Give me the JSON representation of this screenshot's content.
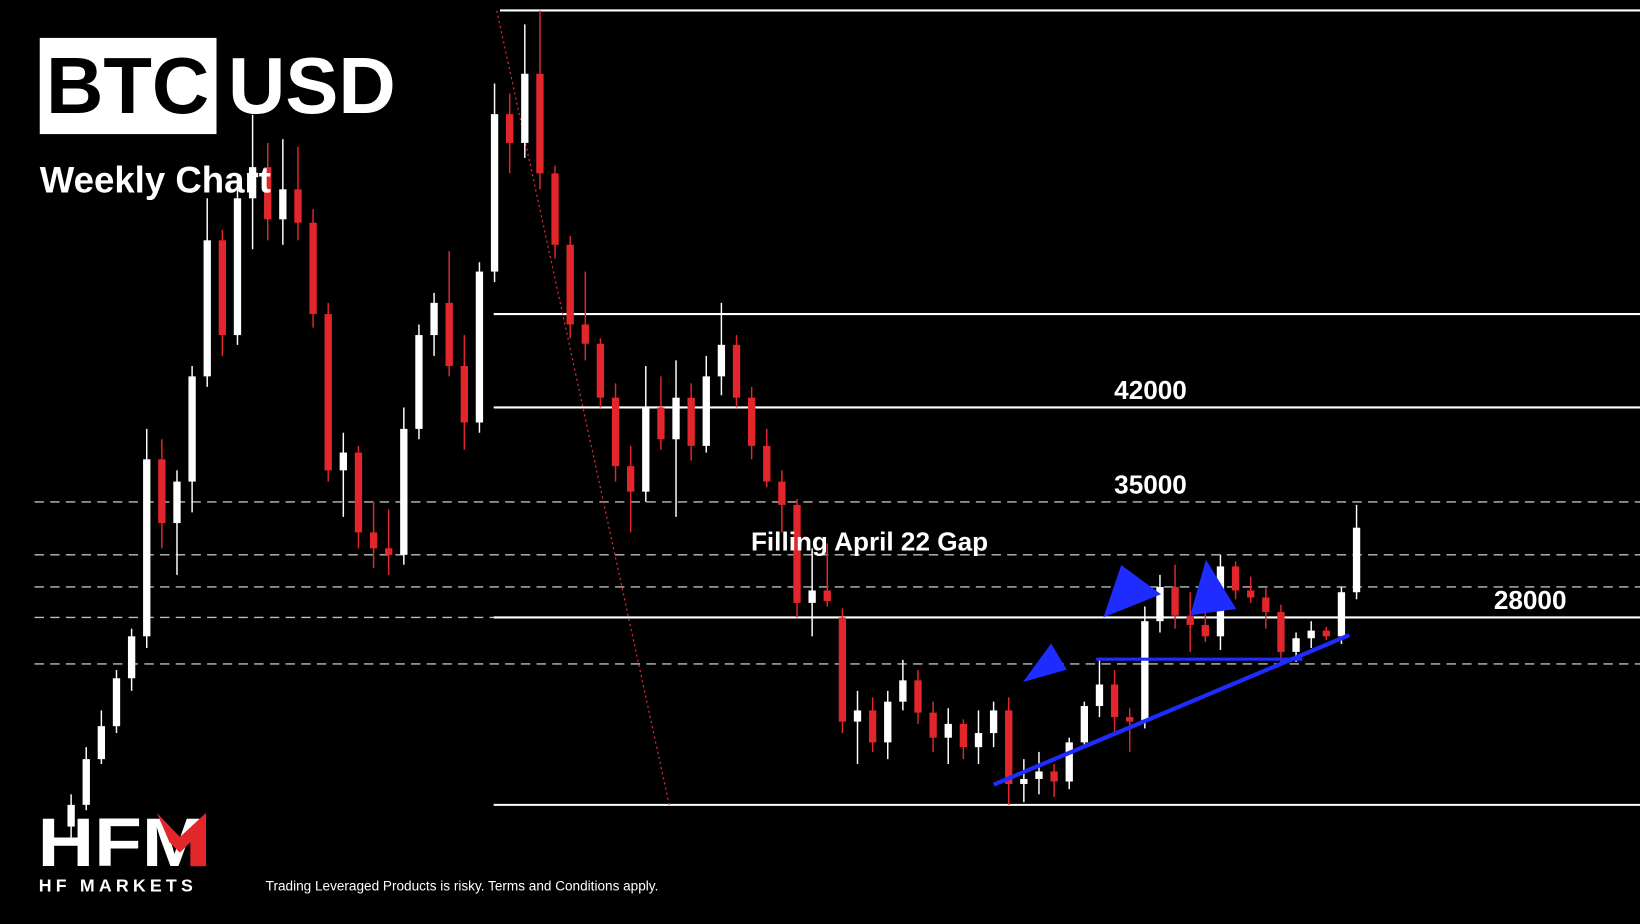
{
  "header": {
    "pair_base": "BTC",
    "pair_quote": "USD",
    "subtitle": "Weekly Chart"
  },
  "chart_data": {
    "type": "candlestick",
    "log_scale": true,
    "ylim": [
      15500,
      92200
    ],
    "up_color": "#ffffff",
    "down_color": "#e3262c",
    "annotation": "Filling April 22 Gap",
    "labeled_levels": [
      42000,
      35000,
      28000
    ],
    "solid_levels": [
      90400,
      50300,
      42000,
      28000,
      19500
    ],
    "dashed_levels": [
      35000,
      31600,
      29700,
      28000,
      25600
    ],
    "open": [
      18700,
      19500,
      21300,
      22700,
      24900,
      27000,
      38000,
      33600,
      36400,
      44600,
      58000,
      48300,
      62900,
      66800,
      60400,
      64000,
      60000,
      50300,
      37200,
      38500,
      33000,
      32000,
      31600,
      40300,
      48300,
      51400,
      45500,
      40800,
      54600,
      74000,
      70000,
      80000,
      66000,
      57500,
      49300,
      47500,
      42800,
      37500,
      35700,
      42000,
      39500,
      42800,
      39000,
      44600,
      47400,
      42800,
      39000,
      36400,
      34800,
      28800,
      29500,
      28000,
      22900,
      23400,
      22000,
      23800,
      24800,
      23300,
      22200,
      22800,
      21800,
      22400,
      23400,
      20300,
      20500,
      20800,
      20400,
      22000,
      23600,
      24600,
      23100,
      22900,
      27800,
      29700,
      28100,
      27600,
      27000,
      30900,
      29500,
      29100,
      28300,
      26200,
      26900,
      27300,
      27000,
      29400
    ],
    "high": [
      19900,
      21800,
      23400,
      25300,
      27400,
      40300,
      39500,
      37200,
      45500,
      62900,
      59200,
      65500,
      73900,
      70000,
      70500,
      69500,
      61600,
      51400,
      40000,
      39000,
      35000,
      34500,
      42000,
      49300,
      52400,
      56800,
      48300,
      55600,
      78500,
      77000,
      88000,
      90400,
      67000,
      58500,
      54600,
      48000,
      44000,
      39000,
      45500,
      44600,
      46000,
      44000,
      46400,
      51400,
      48300,
      43700,
      40300,
      37200,
      35200,
      32000,
      32300,
      28500,
      24300,
      24000,
      24300,
      25800,
      25300,
      23800,
      23500,
      23000,
      23400,
      23800,
      24000,
      21300,
      21600,
      21100,
      22200,
      23800,
      25800,
      25300,
      23500,
      28600,
      30400,
      31000,
      29400,
      28300,
      31600,
      31200,
      30300,
      29700,
      28700,
      27200,
      27800,
      27500,
      29700,
      34800
    ],
    "low": [
      18300,
      19300,
      21100,
      22400,
      24300,
      26400,
      32000,
      30400,
      34300,
      43700,
      46400,
      47400,
      57000,
      58000,
      57500,
      58000,
      49000,
      36400,
      34000,
      32000,
      30800,
      30400,
      31000,
      39500,
      46400,
      44600,
      38700,
      40000,
      53500,
      66000,
      68000,
      64000,
      56000,
      48000,
      46000,
      42000,
      36400,
      33000,
      35000,
      38700,
      34000,
      37900,
      38500,
      43000,
      42000,
      38000,
      36000,
      33000,
      28000,
      27000,
      28600,
      22400,
      21100,
      21600,
      21300,
      23400,
      22800,
      21600,
      21100,
      21300,
      21100,
      21800,
      19500,
      19600,
      19900,
      19800,
      20100,
      21800,
      23100,
      22400,
      21600,
      22600,
      27200,
      27400,
      26200,
      26700,
      26300,
      29000,
      28800,
      27400,
      25600,
      25700,
      26400,
      26800,
      26600,
      29000
    ],
    "close": [
      19500,
      21300,
      22700,
      24900,
      27000,
      38000,
      33600,
      36400,
      44600,
      58000,
      48300,
      62900,
      66800,
      60400,
      64000,
      60000,
      50300,
      37200,
      38500,
      33000,
      32000,
      31600,
      40300,
      48300,
      51400,
      45500,
      40800,
      54600,
      74000,
      70000,
      80000,
      66000,
      57500,
      49300,
      47500,
      42800,
      37500,
      35700,
      42000,
      39500,
      42800,
      39000,
      44600,
      47400,
      42800,
      39000,
      36400,
      34800,
      28800,
      29500,
      28900,
      22900,
      23400,
      22000,
      23800,
      24800,
      23300,
      22200,
      22800,
      21800,
      22400,
      23400,
      20300,
      20500,
      20800,
      20400,
      22000,
      23600,
      24600,
      23100,
      22900,
      27800,
      29700,
      28100,
      27600,
      27000,
      30900,
      29500,
      29100,
      28300,
      26200,
      26900,
      27300,
      27000,
      29400,
      33300
    ]
  },
  "footer": {
    "logo": "HFM",
    "brand": "HF MARKETS",
    "disclaimer": "Trading Leveraged Products is risky. Terms and Conditions apply."
  }
}
